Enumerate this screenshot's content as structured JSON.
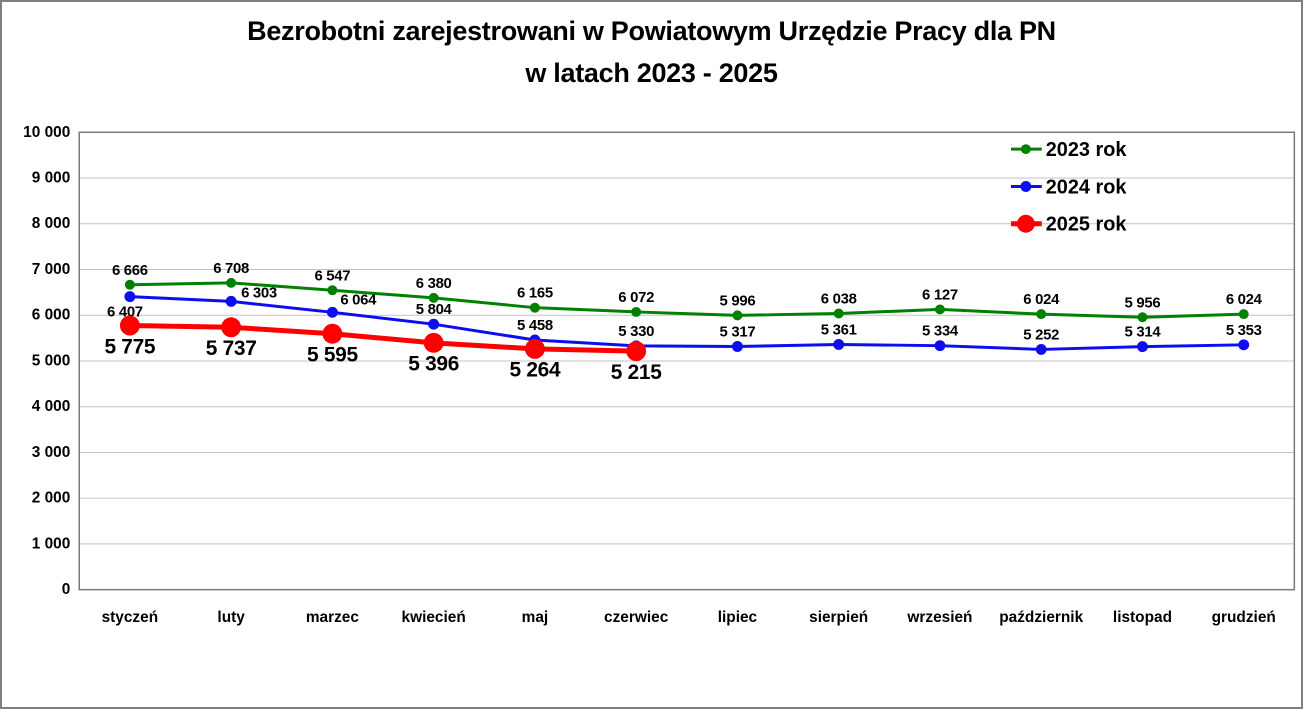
{
  "title": {
    "line1": "Bezrobotni zarejestrowani w Powiatowym Urzędzie Pracy dla PN",
    "line2": "w latach 2023 - 2025"
  },
  "chart_data": {
    "type": "line",
    "categories": [
      "styczeń",
      "luty",
      "marzec",
      "kwiecień",
      "maj",
      "czerwiec",
      "lipiec",
      "sierpień",
      "wrzesień",
      "październik",
      "listopad",
      "grudzień"
    ],
    "series": [
      {
        "name": "2023 rok",
        "color": "#008000",
        "values": [
          6666,
          6708,
          6547,
          6380,
          6165,
          6072,
          5996,
          6038,
          6127,
          6024,
          5956,
          6024
        ],
        "line_width": 3,
        "marker_radius": 5,
        "label_position": "above",
        "label_font_size": 15
      },
      {
        "name": "2024 rok",
        "color": "#0d0def",
        "values": [
          6407,
          6303,
          6064,
          5804,
          5458,
          5330,
          5317,
          5361,
          5334,
          5252,
          5314,
          5353
        ],
        "line_width": 3,
        "marker_radius": 5.5,
        "label_position": "above",
        "label_font_size": 15,
        "label_overrides": {
          "0": {
            "position": "below",
            "dx": -5
          },
          "1": {
            "dx": 28,
            "dy": 6
          },
          "2": {
            "dx": 26,
            "dy": 2
          }
        }
      },
      {
        "name": "2025 rok",
        "color": "#ff0000",
        "values": [
          5775,
          5737,
          5595,
          5396,
          5264,
          5215
        ],
        "line_width": 5,
        "marker_radius": 10,
        "label_position": "below",
        "label_font_size": 21
      }
    ],
    "xlabel": "",
    "ylabel": "",
    "ylim": [
      0,
      10000
    ],
    "ytick_step": 1000,
    "ytick_labels": [
      "0",
      "1 000",
      "2 000",
      "3 000",
      "4 000",
      "5 000",
      "6 000",
      "7 000",
      "8 000",
      "9 000",
      "10 000"
    ],
    "grid": true,
    "legend_position": "top-right",
    "axis_color": "#7a7a7a",
    "grid_color": "#c3c3c3",
    "text_color": "#000000"
  }
}
